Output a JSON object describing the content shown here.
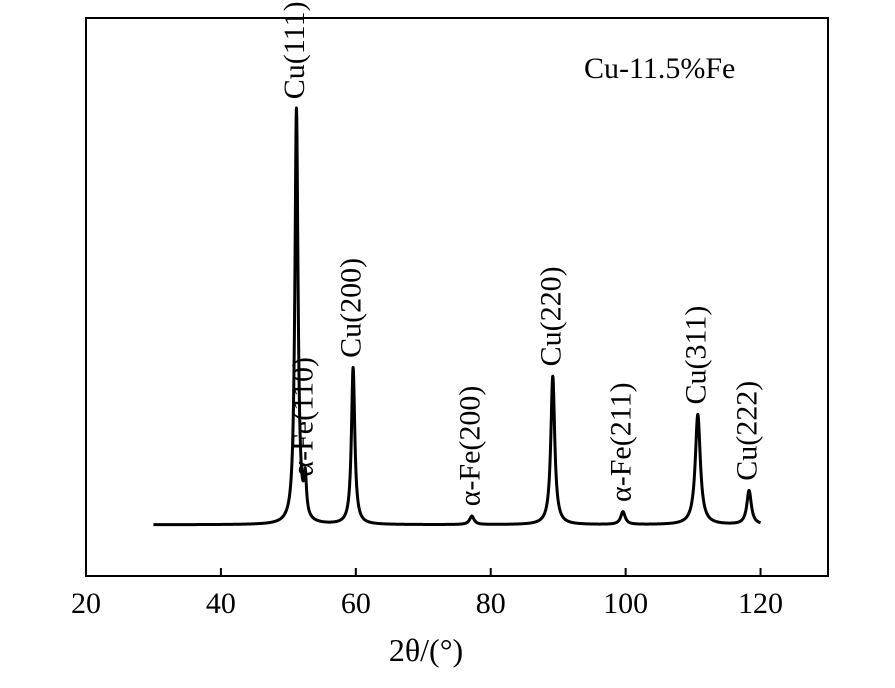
{
  "chart_data": {
    "type": "line",
    "title": "",
    "sample_label": "Cu-11.5%Fe",
    "xlabel": "2θ/(°)",
    "ylabel": "",
    "xlim": [
      20,
      130
    ],
    "ylim": [
      0,
      1.0
    ],
    "xticks": [
      20,
      40,
      60,
      80,
      100,
      120
    ],
    "yticks": [],
    "grid": false,
    "x_range": [
      30,
      120
    ],
    "baseline": 0.01,
    "peaks": [
      {
        "label": "Cu(111)",
        "x": 51.2,
        "y": 0.98,
        "w": 0.28
      },
      {
        "label": "α-Fe(110)",
        "x": 52.5,
        "y": 0.09,
        "w": 0.22
      },
      {
        "label": "Cu(200)",
        "x": 59.6,
        "y": 0.37,
        "w": 0.3
      },
      {
        "label": "α-Fe(200)",
        "x": 77.2,
        "y": 0.02,
        "w": 0.4
      },
      {
        "label": "Cu(220)",
        "x": 89.2,
        "y": 0.35,
        "w": 0.35
      },
      {
        "label": "α-Fe(211)",
        "x": 99.6,
        "y": 0.03,
        "w": 0.4
      },
      {
        "label": "Cu(311)",
        "x": 110.7,
        "y": 0.26,
        "w": 0.45
      },
      {
        "label": "Cu(222)",
        "x": 118.3,
        "y": 0.08,
        "w": 0.4
      }
    ]
  }
}
